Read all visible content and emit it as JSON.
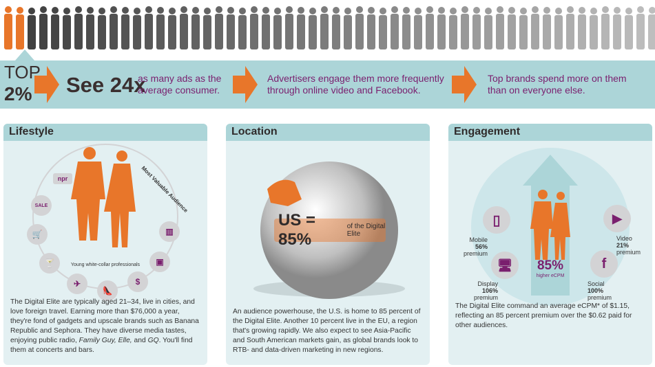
{
  "colors": {
    "orange": "#e8762a",
    "teal": "#acd5d8",
    "panel": "#e3f0f2",
    "purple": "#7a1f6e",
    "gray": "#9a9a9a"
  },
  "banner": {
    "top_label": "TOP",
    "top_value": "2%",
    "see": "See 24x",
    "see_caption": "as many ads as the average consumer.",
    "msg2": "Advertisers engage them more frequently through online video and Facebook.",
    "msg3": "Top brands spend more on them than on everyone else."
  },
  "lifestyle": {
    "title": "Lifestyle",
    "arc_label": "Most Valuable Audience",
    "caption": "Young white-collar professionals",
    "icons": [
      "npr",
      "SALE",
      "cart-icon",
      "cocktail-icon",
      "airplane-icon",
      "heel-icon",
      "money-bag-icon",
      "tablet-icon",
      "city-icon"
    ],
    "npr": "npr",
    "sale": "SALE",
    "text": "The Digital Elite are typically aged 21–34, live in cities, and love foreign travel. Earning more than $76,000 a year, they're fond of gadgets and upscale brands such as Banana Republic and Sephora. They have diverse media tastes, enjoying public radio, ",
    "text_italic": "Family Guy, Elle,",
    "text_mid": " and ",
    "text_italic2": "GQ",
    "text_end": ". You'll find them at concerts and bars."
  },
  "location": {
    "title": "Location",
    "stat": "US = 85%",
    "stat_caption": "of the Digital Elite",
    "text": "An audience powerhouse, the U.S. is home to 85 percent of the Digital Elite. Another 10 percent live in the EU, a region that's growing rapidly. We also expect to see Asia-Pacific and South American markets gain, as global brands look to RTB- and data-driven marketing in new regions."
  },
  "engagement": {
    "title": "Engagement",
    "center_value": "85%",
    "center_caption": "higher eCPM",
    "channels": [
      {
        "name": "Mobile",
        "value": "56%",
        "suffix": "premium"
      },
      {
        "name": "Display",
        "value": "106%",
        "suffix": "premium"
      },
      {
        "name": "Video",
        "value": "21%",
        "suffix": "premium"
      },
      {
        "name": "Social",
        "value": "100%",
        "suffix": "premium"
      }
    ],
    "text": "The Digital Elite command an average eCPM* of $1.15, reflecting an 85 percent premium over the $0.62 paid for other audiences."
  }
}
